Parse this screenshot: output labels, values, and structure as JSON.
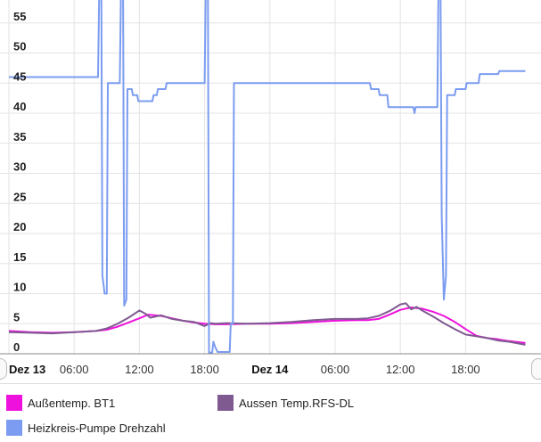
{
  "chart_data": {
    "type": "line",
    "ylim": [
      0,
      60
    ],
    "y_ticks": [
      0,
      5,
      10,
      15,
      20,
      25,
      30,
      35,
      40,
      45,
      50,
      55
    ],
    "x_range": [
      0,
      47.5
    ],
    "x_ticks": [
      {
        "x": 0,
        "label": "Dez 13",
        "bold": true
      },
      {
        "x": 6,
        "label": "06:00",
        "bold": false
      },
      {
        "x": 12,
        "label": "12:00",
        "bold": false
      },
      {
        "x": 18,
        "label": "18:00",
        "bold": false
      },
      {
        "x": 24,
        "label": "Dez 14",
        "bold": true
      },
      {
        "x": 30,
        "label": "06:00",
        "bold": false
      },
      {
        "x": 36,
        "label": "12:00",
        "bold": false
      },
      {
        "x": 42,
        "label": "18:00",
        "bold": false
      }
    ],
    "grid": true,
    "legend_position": "bottom",
    "series": [
      {
        "name": "Außentemp. BT1",
        "color": "#ee11dd",
        "points": [
          [
            0,
            3.8
          ],
          [
            2,
            3.6
          ],
          [
            4,
            3.5
          ],
          [
            6,
            3.6
          ],
          [
            8,
            3.8
          ],
          [
            9,
            4.0
          ],
          [
            10,
            4.5
          ],
          [
            11,
            5.2
          ],
          [
            12,
            5.9
          ],
          [
            12.8,
            6.5
          ],
          [
            14,
            6.3
          ],
          [
            15,
            5.9
          ],
          [
            16,
            5.5
          ],
          [
            17,
            5.2
          ],
          [
            18,
            5.0
          ],
          [
            19,
            4.9
          ],
          [
            20,
            4.9
          ],
          [
            22,
            5.0
          ],
          [
            24,
            5.0
          ],
          [
            26,
            5.1
          ],
          [
            28,
            5.3
          ],
          [
            30,
            5.5
          ],
          [
            32,
            5.6
          ],
          [
            33,
            5.6
          ],
          [
            34,
            5.8
          ],
          [
            35,
            6.5
          ],
          [
            36,
            7.3
          ],
          [
            37,
            7.7
          ],
          [
            38,
            7.5
          ],
          [
            39,
            7.0
          ],
          [
            40,
            6.3
          ],
          [
            41,
            5.3
          ],
          [
            42,
            4.1
          ],
          [
            43,
            3.0
          ],
          [
            44,
            2.6
          ],
          [
            45,
            2.4
          ],
          [
            46,
            2.1
          ],
          [
            47.5,
            1.8
          ]
        ]
      },
      {
        "name": "Aussen Temp.RFS-DL",
        "color": "#7f5a91",
        "points": [
          [
            0,
            3.6
          ],
          [
            2,
            3.5
          ],
          [
            4,
            3.4
          ],
          [
            6,
            3.6
          ],
          [
            8,
            3.8
          ],
          [
            9,
            4.2
          ],
          [
            10,
            5.0
          ],
          [
            11,
            6.0
          ],
          [
            12,
            7.2
          ],
          [
            12.6,
            6.6
          ],
          [
            13,
            6.0
          ],
          [
            14,
            6.4
          ],
          [
            15,
            5.8
          ],
          [
            16,
            5.5
          ],
          [
            17,
            5.3
          ],
          [
            18,
            4.6
          ],
          [
            18.5,
            5.1
          ],
          [
            19,
            5.0
          ],
          [
            20,
            5.1
          ],
          [
            22,
            5.0
          ],
          [
            24,
            5.1
          ],
          [
            26,
            5.3
          ],
          [
            28,
            5.6
          ],
          [
            30,
            5.8
          ],
          [
            32,
            5.8
          ],
          [
            33,
            5.9
          ],
          [
            34,
            6.3
          ],
          [
            35,
            7.1
          ],
          [
            36,
            8.2
          ],
          [
            36.5,
            8.4
          ],
          [
            37,
            7.4
          ],
          [
            37.5,
            7.8
          ],
          [
            38,
            7.2
          ],
          [
            39,
            6.2
          ],
          [
            40,
            5.1
          ],
          [
            41,
            4.1
          ],
          [
            42,
            3.2
          ],
          [
            43,
            2.9
          ],
          [
            44,
            2.6
          ],
          [
            45,
            2.2
          ],
          [
            46,
            2.0
          ],
          [
            47.5,
            1.5
          ]
        ]
      },
      {
        "name": "Heizkreis-Pumpe Drehzahl",
        "color": "#7b9cf0",
        "points": [
          [
            0,
            46
          ],
          [
            8.2,
            46
          ],
          [
            8.3,
            60
          ],
          [
            8.5,
            60
          ],
          [
            8.6,
            13
          ],
          [
            8.8,
            10
          ],
          [
            9.0,
            10
          ],
          [
            9.1,
            45
          ],
          [
            10.2,
            45
          ],
          [
            10.3,
            60
          ],
          [
            10.5,
            60
          ],
          [
            10.6,
            8
          ],
          [
            10.8,
            9
          ],
          [
            10.9,
            44
          ],
          [
            11.3,
            44
          ],
          [
            11.4,
            43
          ],
          [
            11.8,
            43
          ],
          [
            11.9,
            42
          ],
          [
            13.2,
            42
          ],
          [
            13.3,
            43
          ],
          [
            13.6,
            43
          ],
          [
            13.7,
            44
          ],
          [
            14.4,
            44
          ],
          [
            14.5,
            45
          ],
          [
            18.0,
            45
          ],
          [
            18.1,
            60
          ],
          [
            18.3,
            60
          ],
          [
            18.4,
            0.2
          ],
          [
            18.7,
            0.2
          ],
          [
            18.8,
            2
          ],
          [
            19.0,
            1
          ],
          [
            19.2,
            0.3
          ],
          [
            20.3,
            0.3
          ],
          [
            20.4,
            5
          ],
          [
            20.6,
            5
          ],
          [
            20.7,
            45
          ],
          [
            33.2,
            45
          ],
          [
            33.3,
            44
          ],
          [
            34,
            44
          ],
          [
            34.1,
            43
          ],
          [
            34.8,
            43
          ],
          [
            34.9,
            41
          ],
          [
            37.2,
            41
          ],
          [
            37.3,
            40
          ],
          [
            37.4,
            41
          ],
          [
            39.4,
            41
          ],
          [
            39.5,
            60
          ],
          [
            39.7,
            60
          ],
          [
            39.8,
            23
          ],
          [
            40.0,
            9
          ],
          [
            40.2,
            13
          ],
          [
            40.3,
            43
          ],
          [
            41.0,
            43
          ],
          [
            41.1,
            44
          ],
          [
            42.0,
            44
          ],
          [
            42.1,
            45
          ],
          [
            43.2,
            45
          ],
          [
            43.3,
            46.5
          ],
          [
            45.0,
            46.5
          ],
          [
            45.1,
            47
          ],
          [
            47.5,
            47
          ]
        ]
      }
    ]
  },
  "legend": {
    "items": [
      {
        "label": "Außentemp. BT1",
        "color": "#ee11dd"
      },
      {
        "label": "Aussen Temp.RFS-DL",
        "color": "#7f5a91"
      },
      {
        "label": "Heizkreis-Pumpe Drehzahl",
        "color": "#7b9cf0"
      }
    ]
  }
}
